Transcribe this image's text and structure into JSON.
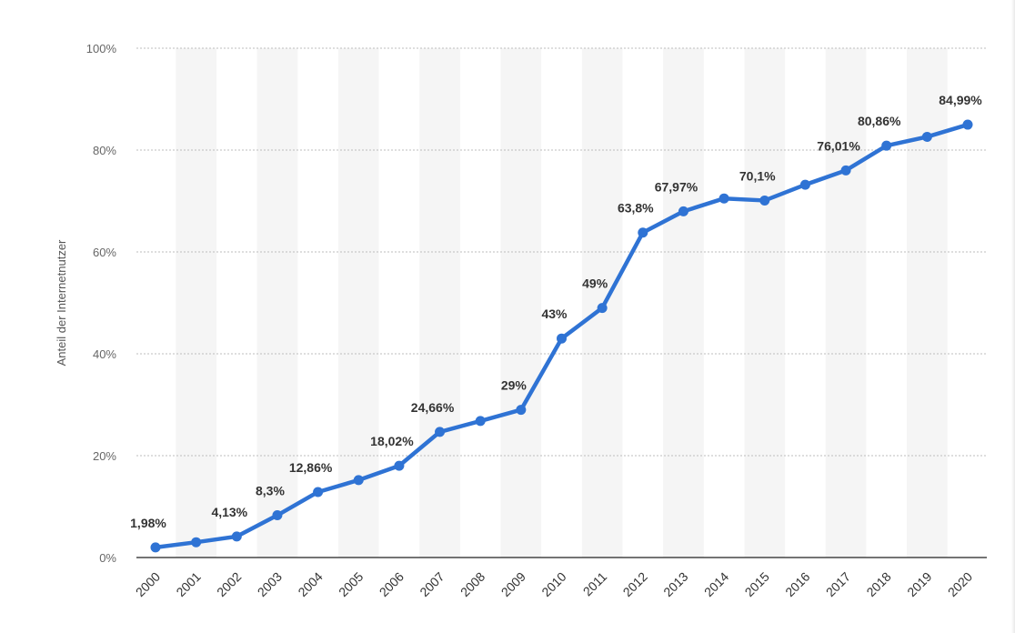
{
  "chart_data": {
    "type": "line",
    "ylabel": "Anteil der Internetnutzer",
    "ylim": [
      0,
      100
    ],
    "yticks": [
      0,
      20,
      40,
      60,
      80,
      100
    ],
    "ytick_labels": [
      "0%",
      "20%",
      "40%",
      "60%",
      "80%",
      "100%"
    ],
    "grid": true,
    "x": [
      "2000",
      "2001",
      "2002",
      "2003",
      "2004",
      "2005",
      "2006",
      "2007",
      "2008",
      "2009",
      "2010",
      "2011",
      "2012",
      "2013",
      "2014",
      "2015",
      "2016",
      "2017",
      "2018",
      "2019",
      "2020"
    ],
    "values": [
      1.98,
      3.0,
      4.13,
      8.3,
      12.86,
      15.2,
      18.02,
      24.66,
      26.8,
      29,
      43,
      49,
      63.8,
      67.97,
      70.5,
      70.1,
      73.2,
      76.01,
      80.86,
      82.6,
      84.99
    ],
    "data_labels": [
      "1,98%",
      null,
      "4,13%",
      "8,3%",
      "12,86%",
      null,
      "18,02%",
      "24,66%",
      null,
      "29%",
      "43%",
      "49%",
      "63,8%",
      "67,97%",
      null,
      "70,1%",
      null,
      "76,01%",
      "80,86%",
      null,
      "84,99%"
    ],
    "line_color": "#2f73d4",
    "band_color": "#f5f5f5"
  }
}
